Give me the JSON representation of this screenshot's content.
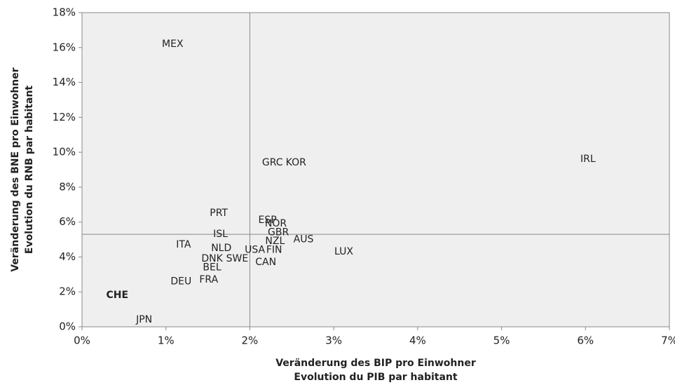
{
  "chart_data": {
    "type": "scatter",
    "xlabel": [
      "Veränderung des BIP pro Einwohner",
      "Evolution du PIB par habitant"
    ],
    "ylabel": [
      "Veränderung des BNE pro Einwohner",
      "Evolution du RNB par habitant"
    ],
    "xlim": [
      0,
      7
    ],
    "ylim": [
      0,
      18
    ],
    "xticks": [
      {
        "value": 0,
        "label": "0%"
      },
      {
        "value": 1,
        "label": "1%"
      },
      {
        "value": 2,
        "label": "2%"
      },
      {
        "value": 3,
        "label": "3%"
      },
      {
        "value": 4,
        "label": "4%"
      },
      {
        "value": 5,
        "label": "5%"
      },
      {
        "value": 6,
        "label": "6%"
      },
      {
        "value": 7,
        "label": "7%"
      }
    ],
    "yticks": [
      {
        "value": 0,
        "label": "0%"
      },
      {
        "value": 2,
        "label": "2%"
      },
      {
        "value": 4,
        "label": "4%"
      },
      {
        "value": 6,
        "label": "6%"
      },
      {
        "value": 8,
        "label": "8%"
      },
      {
        "value": 10,
        "label": "10%"
      },
      {
        "value": 12,
        "label": "12%"
      },
      {
        "value": 14,
        "label": "14%"
      },
      {
        "value": 16,
        "label": "16%"
      },
      {
        "value": 18,
        "label": "18%"
      }
    ],
    "reference_x": 2,
    "reference_y": 5.3,
    "background": "#efefef",
    "color": "#222222",
    "points": [
      {
        "label": "MEX",
        "x": 1.08,
        "y": 16.2
      },
      {
        "label": "GRC",
        "x": 2.27,
        "y": 9.4
      },
      {
        "label": "KOR",
        "x": 2.55,
        "y": 9.4
      },
      {
        "label": "IRL",
        "x": 6.03,
        "y": 9.6
      },
      {
        "label": "PRT",
        "x": 1.63,
        "y": 6.5
      },
      {
        "label": "ESP",
        "x": 2.21,
        "y": 6.1
      },
      {
        "label": "NOR",
        "x": 2.31,
        "y": 5.9
      },
      {
        "label": "GBR",
        "x": 2.34,
        "y": 5.4
      },
      {
        "label": "ISL",
        "x": 1.65,
        "y": 5.3
      },
      {
        "label": "NZL",
        "x": 2.3,
        "y": 4.9
      },
      {
        "label": "AUS",
        "x": 2.64,
        "y": 5.0
      },
      {
        "label": "ITA",
        "x": 1.21,
        "y": 4.7
      },
      {
        "label": "NLD",
        "x": 1.66,
        "y": 4.5
      },
      {
        "label": "USA",
        "x": 2.06,
        "y": 4.4
      },
      {
        "label": "FIN",
        "x": 2.29,
        "y": 4.4
      },
      {
        "label": "LUX",
        "x": 3.12,
        "y": 4.3
      },
      {
        "label": "DNK",
        "x": 1.55,
        "y": 3.9
      },
      {
        "label": "SWE",
        "x": 1.85,
        "y": 3.9
      },
      {
        "label": "CAN",
        "x": 2.19,
        "y": 3.7
      },
      {
        "label": "BEL",
        "x": 1.55,
        "y": 3.4
      },
      {
        "label": "FRA",
        "x": 1.51,
        "y": 2.7
      },
      {
        "label": "DEU",
        "x": 1.18,
        "y": 2.6
      },
      {
        "label": "CHE",
        "x": 0.42,
        "y": 1.8,
        "bold": true
      },
      {
        "label": "JPN",
        "x": 0.74,
        "y": 0.4
      }
    ]
  }
}
